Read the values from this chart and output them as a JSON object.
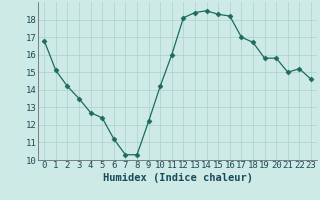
{
  "x": [
    0,
    1,
    2,
    3,
    4,
    5,
    6,
    7,
    8,
    9,
    10,
    11,
    12,
    13,
    14,
    15,
    16,
    17,
    18,
    19,
    20,
    21,
    22,
    23
  ],
  "y": [
    16.8,
    15.1,
    14.2,
    13.5,
    12.7,
    12.4,
    11.2,
    10.3,
    10.3,
    12.2,
    14.2,
    16.0,
    18.1,
    18.4,
    18.5,
    18.3,
    18.2,
    17.0,
    16.7,
    15.8,
    15.8,
    15.0,
    15.2,
    14.6
  ],
  "line_color": "#1d6b5e",
  "marker": "D",
  "marker_size": 2.5,
  "bg_color": "#ceeae6",
  "grid_color": "#b2d5d0",
  "xlabel": "Humidex (Indice chaleur)",
  "xlim": [
    -0.5,
    23.5
  ],
  "ylim": [
    10,
    19
  ],
  "ytick_values": [
    10,
    11,
    12,
    13,
    14,
    15,
    16,
    17,
    18
  ],
  "xlabel_fontsize": 7.5,
  "tick_fontsize": 6.5
}
